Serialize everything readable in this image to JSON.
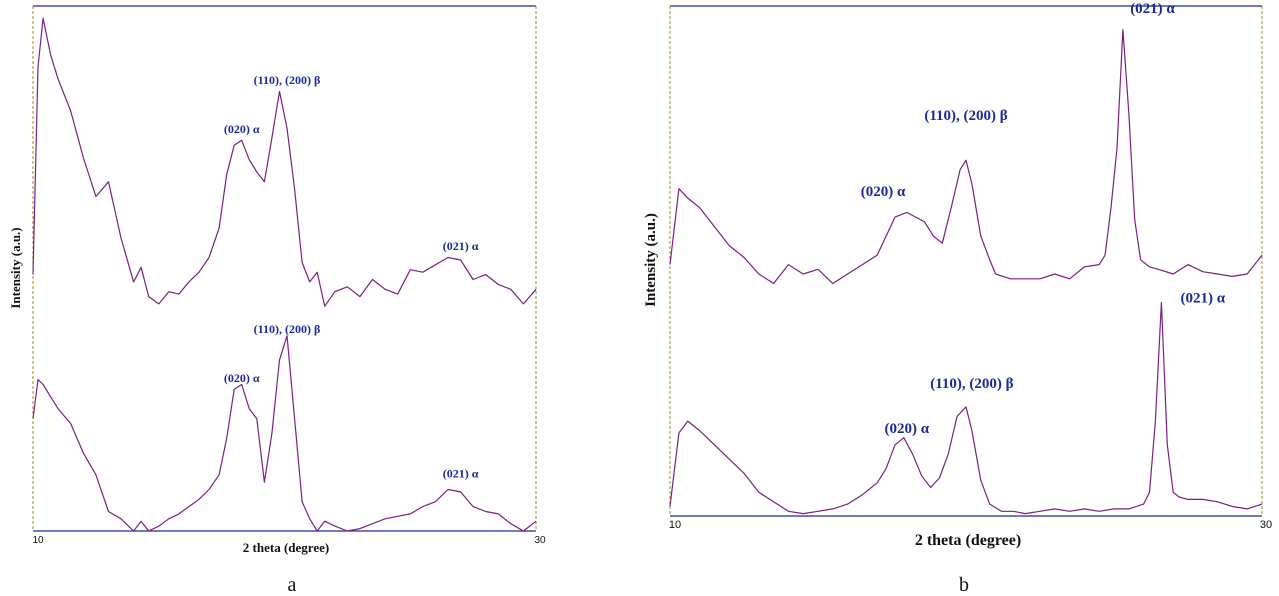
{
  "colors": {
    "trace": "#7a1f86",
    "axis": "#1a2a9c",
    "frame": "#a08a1e",
    "annotation": "#1a2a9c"
  },
  "chart_data": [
    {
      "panel_label": "a",
      "type": "line",
      "xlabel": "2 theta (degree)",
      "ylabel": "Intensity (a.u.)",
      "xlim": [
        10,
        30
      ],
      "ylim": [
        0,
        2.15
      ],
      "x_tick_labels": [
        "10",
        "30"
      ],
      "grid": false,
      "series": [
        {
          "x": [
            10.0,
            10.2,
            10.4,
            10.7,
            11.0,
            11.5,
            12.0,
            12.5,
            13.0,
            13.5,
            14.0,
            14.3,
            14.6,
            15.0,
            15.4,
            15.8,
            16.2,
            16.6,
            17.0,
            17.4,
            17.7,
            18.0,
            18.3,
            18.6,
            18.9,
            19.2,
            19.5,
            19.8,
            20.1,
            20.4,
            20.7,
            21.0,
            21.3,
            21.6,
            22.0,
            22.5,
            23.0,
            23.5,
            24.0,
            24.5,
            25.0,
            25.5,
            26.0,
            26.5,
            27.0,
            27.5,
            28.0,
            28.5,
            29.0,
            29.5,
            30.0
          ],
          "y": [
            1.05,
            1.9,
            2.1,
            1.95,
            1.85,
            1.72,
            1.53,
            1.37,
            1.43,
            1.2,
            1.02,
            1.08,
            0.96,
            0.93,
            0.98,
            0.97,
            1.02,
            1.06,
            1.12,
            1.24,
            1.46,
            1.58,
            1.6,
            1.52,
            1.47,
            1.43,
            1.61,
            1.8,
            1.65,
            1.4,
            1.1,
            1.02,
            1.06,
            0.92,
            0.98,
            1.0,
            0.96,
            1.03,
            0.99,
            0.97,
            1.07,
            1.06,
            1.09,
            1.12,
            1.11,
            1.03,
            1.05,
            1.01,
            0.99,
            0.93,
            0.99
          ]
        },
        {
          "x": [
            10.0,
            10.2,
            10.4,
            10.7,
            11.0,
            11.5,
            12.0,
            12.5,
            13.0,
            13.5,
            14.0,
            14.3,
            14.6,
            15.0,
            15.4,
            15.8,
            16.2,
            16.6,
            17.0,
            17.4,
            17.7,
            18.0,
            18.3,
            18.6,
            18.9,
            19.2,
            19.5,
            19.8,
            20.1,
            20.4,
            20.7,
            21.0,
            21.3,
            21.6,
            22.0,
            22.5,
            23.0,
            23.5,
            24.0,
            24.5,
            25.0,
            25.5,
            26.0,
            26.5,
            27.0,
            27.5,
            28.0,
            28.5,
            29.0,
            29.5,
            30.0
          ],
          "y": [
            0.46,
            0.62,
            0.6,
            0.55,
            0.5,
            0.44,
            0.32,
            0.23,
            0.08,
            0.05,
            0.0,
            0.04,
            0.0,
            0.02,
            0.05,
            0.07,
            0.1,
            0.13,
            0.17,
            0.23,
            0.38,
            0.58,
            0.6,
            0.5,
            0.46,
            0.2,
            0.4,
            0.7,
            0.8,
            0.46,
            0.12,
            0.05,
            0.0,
            0.04,
            0.02,
            0.0,
            0.01,
            0.03,
            0.05,
            0.06,
            0.07,
            0.1,
            0.12,
            0.17,
            0.16,
            0.1,
            0.08,
            0.07,
            0.03,
            0.0,
            0.04
          ]
        }
      ],
      "annotations": [
        {
          "text": "(020) α",
          "x": 18.3,
          "y": 1.63
        },
        {
          "text": "(110), (200) β",
          "x": 20.1,
          "y": 1.83
        },
        {
          "text": "(021) α",
          "x": 27.0,
          "y": 1.15
        },
        {
          "text": "(020) α",
          "x": 18.3,
          "y": 0.61
        },
        {
          "text": "(110), (200) β",
          "x": 20.1,
          "y": 0.81
        },
        {
          "text": "(021) α",
          "x": 27.0,
          "y": 0.22
        }
      ]
    },
    {
      "panel_label": "b",
      "type": "line",
      "xlabel": "2 theta (degree)",
      "ylabel": "Intensity (a.u.)",
      "xlim": [
        10,
        30
      ],
      "ylim": [
        0,
        2.15
      ],
      "x_tick_labels": [
        "10",
        "30"
      ],
      "grid": false,
      "series": [
        {
          "x": [
            10.0,
            10.3,
            10.6,
            11.0,
            11.5,
            12.0,
            12.5,
            13.0,
            13.5,
            14.0,
            14.5,
            15.0,
            15.5,
            16.0,
            16.5,
            17.0,
            17.3,
            17.6,
            18.0,
            18.3,
            18.6,
            18.9,
            19.2,
            19.5,
            19.8,
            20.0,
            20.2,
            20.5,
            20.8,
            21.0,
            21.5,
            22.0,
            22.5,
            23.0,
            23.5,
            24.0,
            24.5,
            24.7,
            24.9,
            25.1,
            25.3,
            25.5,
            25.7,
            25.9,
            26.2,
            26.5,
            27.0,
            27.5,
            28.0,
            28.5,
            29.0,
            29.5,
            30.0
          ],
          "y": [
            1.06,
            1.38,
            1.34,
            1.3,
            1.22,
            1.14,
            1.09,
            1.02,
            0.98,
            1.06,
            1.02,
            1.04,
            0.98,
            1.02,
            1.06,
            1.1,
            1.18,
            1.26,
            1.28,
            1.26,
            1.24,
            1.18,
            1.15,
            1.3,
            1.46,
            1.5,
            1.4,
            1.18,
            1.08,
            1.02,
            1.0,
            1.0,
            1.0,
            1.02,
            1.0,
            1.05,
            1.06,
            1.1,
            1.3,
            1.55,
            2.05,
            1.7,
            1.25,
            1.08,
            1.05,
            1.04,
            1.02,
            1.06,
            1.03,
            1.02,
            1.01,
            1.02,
            1.1
          ]
        },
        {
          "x": [
            10.0,
            10.3,
            10.6,
            11.0,
            11.5,
            12.0,
            12.5,
            13.0,
            13.5,
            14.0,
            14.5,
            15.0,
            15.5,
            16.0,
            16.5,
            17.0,
            17.3,
            17.6,
            17.9,
            18.2,
            18.5,
            18.8,
            19.1,
            19.4,
            19.7,
            20.0,
            20.2,
            20.5,
            20.8,
            21.2,
            21.6,
            22.0,
            22.5,
            23.0,
            23.5,
            24.0,
            24.5,
            25.0,
            25.5,
            26.0,
            26.2,
            26.4,
            26.6,
            26.8,
            27.0,
            27.2,
            27.5,
            28.0,
            28.5,
            29.0,
            29.5,
            30.0
          ],
          "y": [
            0.04,
            0.35,
            0.4,
            0.36,
            0.3,
            0.24,
            0.18,
            0.1,
            0.06,
            0.02,
            0.01,
            0.02,
            0.03,
            0.05,
            0.09,
            0.14,
            0.2,
            0.3,
            0.33,
            0.26,
            0.17,
            0.12,
            0.16,
            0.26,
            0.42,
            0.46,
            0.36,
            0.15,
            0.05,
            0.02,
            0.02,
            0.01,
            0.02,
            0.03,
            0.02,
            0.03,
            0.02,
            0.03,
            0.03,
            0.05,
            0.1,
            0.4,
            0.9,
            0.3,
            0.1,
            0.08,
            0.07,
            0.07,
            0.06,
            0.04,
            0.03,
            0.05
          ]
        }
      ],
      "annotations": [
        {
          "text": "(021) α",
          "x": 26.3,
          "y": 2.12
        },
        {
          "text": "(110), (200) β",
          "x": 20.0,
          "y": 1.67
        },
        {
          "text": "(020) α",
          "x": 17.2,
          "y": 1.35
        },
        {
          "text": "(021) α",
          "x": 28.0,
          "y": 0.9
        },
        {
          "text": "(110), (200) β",
          "x": 20.2,
          "y": 0.54
        },
        {
          "text": "(020) α",
          "x": 18.0,
          "y": 0.35
        }
      ]
    }
  ]
}
